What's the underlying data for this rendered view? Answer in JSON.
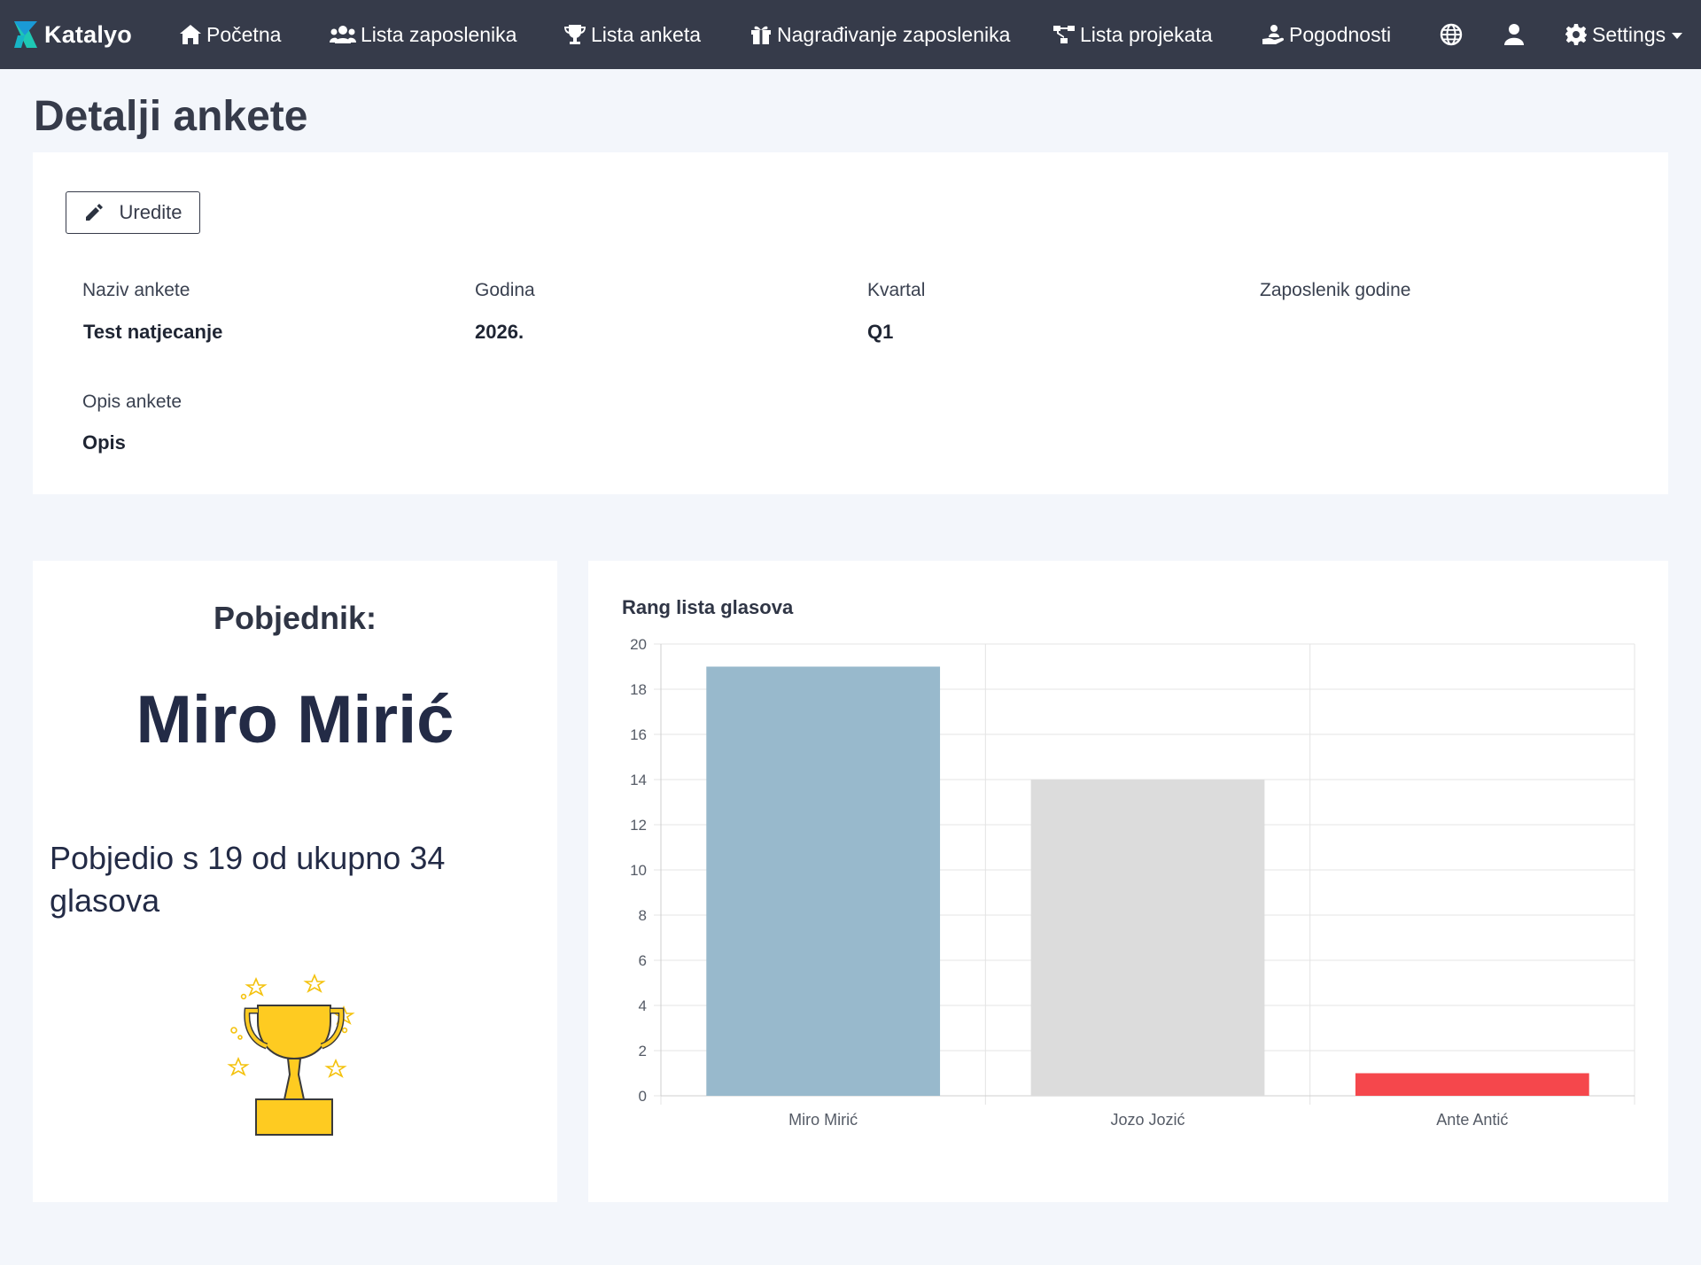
{
  "nav": {
    "brand": "Katalyo",
    "items": [
      {
        "label": "Početna",
        "icon": "home-icon"
      },
      {
        "label": "Lista zaposlenika",
        "icon": "users-icon"
      },
      {
        "label": "Lista anketa",
        "icon": "trophy-icon"
      },
      {
        "label": "Nagrađivanje zaposlenika",
        "icon": "gift-icon"
      },
      {
        "label": "Lista projekata",
        "icon": "sitemap-icon"
      },
      {
        "label": "Pogodnosti",
        "icon": "hand-holding-user-icon"
      }
    ],
    "language_icon": "globe-icon",
    "user_icon": "user-icon",
    "settings_label": "Settings",
    "settings_icon": "gear-icon"
  },
  "page": {
    "title": "Detalji ankete"
  },
  "details": {
    "edit_label": "Uredite",
    "fields": [
      {
        "label": "Naziv ankete",
        "value": "Test natjecanje"
      },
      {
        "label": "Godina",
        "value": "2026."
      },
      {
        "label": "Kvartal",
        "value": "Q1"
      },
      {
        "label": "Zaposlenik godine",
        "value": ""
      },
      {
        "label": "Opis ankete",
        "value": "Opis"
      }
    ]
  },
  "winner": {
    "heading": "Pobjednik:",
    "name": "Miro Mirić",
    "summary": "Pobjedio s 19 od ukupno 34 glasova"
  },
  "chart_data": {
    "type": "bar",
    "title": "Rang lista glasova",
    "categories": [
      "Miro Mirić",
      "Jozo Jozić",
      "Ante Antić"
    ],
    "values": [
      19,
      14,
      1
    ],
    "colors": [
      "#98b9cc",
      "#dcdcdc",
      "#f5474c"
    ],
    "ylim": [
      0,
      20
    ],
    "yticks": [
      0,
      2,
      4,
      6,
      8,
      10,
      12,
      14,
      16,
      18,
      20
    ],
    "grid": true,
    "xlabel": "",
    "ylabel": ""
  }
}
